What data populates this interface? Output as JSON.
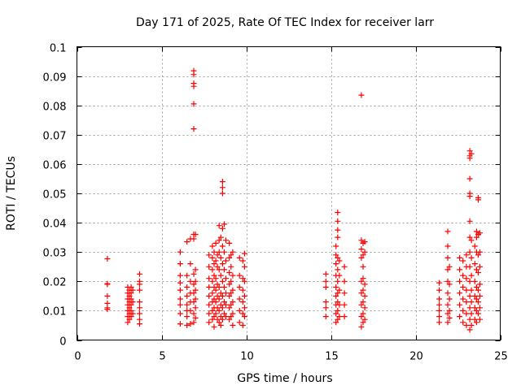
{
  "chart_data": {
    "type": "scatter",
    "title": "Day 171 of 2025, Rate Of TEC Index for receiver larr",
    "xlabel": "GPS time / hours",
    "ylabel": "ROTI / TECUs",
    "xlim": [
      0,
      25
    ],
    "ylim": [
      0,
      0.1
    ],
    "x_ticks": [
      0,
      5,
      10,
      15,
      20,
      25
    ],
    "y_ticks": [
      0,
      0.01,
      0.02,
      0.03,
      0.04,
      0.05,
      0.06,
      0.07,
      0.08,
      0.09,
      0.1
    ],
    "x_tick_labels": [
      "0",
      "5",
      "10",
      "15",
      "20",
      "25"
    ],
    "y_tick_labels": [
      "0",
      "0.01",
      "0.02",
      "0.03",
      "0.04",
      "0.05",
      "0.06",
      "0.07",
      "0.08",
      "0.09",
      "0.1"
    ],
    "grid": true,
    "marker": "plus",
    "color": "#ff0000",
    "points": [
      [
        1.8,
        0.0277
      ],
      [
        1.8,
        0.0192
      ],
      [
        1.8,
        0.019
      ],
      [
        1.8,
        0.015
      ],
      [
        1.8,
        0.0125
      ],
      [
        1.8,
        0.011
      ],
      [
        1.8,
        0.0105
      ],
      [
        3.0,
        0.018
      ],
      [
        3.0,
        0.016
      ],
      [
        3.0,
        0.014
      ],
      [
        3.0,
        0.012
      ],
      [
        3.0,
        0.01
      ],
      [
        3.0,
        0.008
      ],
      [
        3.0,
        0.006
      ],
      [
        3.1,
        0.017
      ],
      [
        3.1,
        0.015
      ],
      [
        3.1,
        0.013
      ],
      [
        3.1,
        0.011
      ],
      [
        3.1,
        0.009
      ],
      [
        3.1,
        0.007
      ],
      [
        3.2,
        0.018
      ],
      [
        3.2,
        0.016
      ],
      [
        3.2,
        0.014
      ],
      [
        3.2,
        0.012
      ],
      [
        3.2,
        0.01
      ],
      [
        3.2,
        0.008
      ],
      [
        3.3,
        0.017
      ],
      [
        3.3,
        0.013
      ],
      [
        3.3,
        0.009
      ],
      [
        3.7,
        0.0225
      ],
      [
        3.7,
        0.02
      ],
      [
        3.7,
        0.019
      ],
      [
        3.7,
        0.017
      ],
      [
        3.7,
        0.013
      ],
      [
        3.7,
        0.011
      ],
      [
        3.7,
        0.009
      ],
      [
        3.7,
        0.007
      ],
      [
        3.7,
        0.0055
      ],
      [
        6.1,
        0.03
      ],
      [
        6.1,
        0.026
      ],
      [
        6.1,
        0.022
      ],
      [
        6.1,
        0.0195
      ],
      [
        6.1,
        0.017
      ],
      [
        6.1,
        0.014
      ],
      [
        6.1,
        0.012
      ],
      [
        6.1,
        0.009
      ],
      [
        6.1,
        0.0055
      ],
      [
        6.5,
        0.0335
      ],
      [
        6.5,
        0.022
      ],
      [
        6.5,
        0.018
      ],
      [
        6.5,
        0.015
      ],
      [
        6.5,
        0.012
      ],
      [
        6.5,
        0.01
      ],
      [
        6.5,
        0.008
      ],
      [
        6.5,
        0.005
      ],
      [
        6.7,
        0.0345
      ],
      [
        6.7,
        0.026
      ],
      [
        6.7,
        0.02
      ],
      [
        6.7,
        0.016
      ],
      [
        6.7,
        0.013
      ],
      [
        6.7,
        0.01
      ],
      [
        6.7,
        0.0055
      ],
      [
        6.9,
        0.0918
      ],
      [
        6.9,
        0.0905
      ],
      [
        6.9,
        0.0875
      ],
      [
        6.9,
        0.0865
      ],
      [
        6.9,
        0.0805
      ],
      [
        6.9,
        0.072
      ],
      [
        6.9,
        0.036
      ],
      [
        6.9,
        0.0345
      ],
      [
        6.9,
        0.0225
      ],
      [
        6.9,
        0.019
      ],
      [
        6.9,
        0.016
      ],
      [
        6.9,
        0.013
      ],
      [
        6.9,
        0.009
      ],
      [
        6.9,
        0.006
      ],
      [
        7.0,
        0.036
      ],
      [
        7.0,
        0.024
      ],
      [
        7.0,
        0.02
      ],
      [
        7.0,
        0.017
      ],
      [
        7.0,
        0.014
      ],
      [
        7.0,
        0.011
      ],
      [
        7.0,
        0.0075
      ],
      [
        7.8,
        0.029
      ],
      [
        7.8,
        0.025
      ],
      [
        7.8,
        0.021
      ],
      [
        7.8,
        0.018
      ],
      [
        7.8,
        0.015
      ],
      [
        7.8,
        0.012
      ],
      [
        7.8,
        0.009
      ],
      [
        7.8,
        0.006
      ],
      [
        8.0,
        0.032
      ],
      [
        8.0,
        0.028
      ],
      [
        8.0,
        0.024
      ],
      [
        8.0,
        0.02
      ],
      [
        8.0,
        0.016
      ],
      [
        8.0,
        0.013
      ],
      [
        8.0,
        0.01
      ],
      [
        8.0,
        0.007
      ],
      [
        8.1,
        0.03
      ],
      [
        8.1,
        0.026
      ],
      [
        8.1,
        0.022
      ],
      [
        8.1,
        0.018
      ],
      [
        8.1,
        0.014
      ],
      [
        8.1,
        0.011
      ],
      [
        8.1,
        0.008
      ],
      [
        8.1,
        0.0045
      ],
      [
        8.2,
        0.033
      ],
      [
        8.2,
        0.027
      ],
      [
        8.2,
        0.021
      ],
      [
        8.2,
        0.017
      ],
      [
        8.2,
        0.013
      ],
      [
        8.2,
        0.009
      ],
      [
        8.3,
        0.029
      ],
      [
        8.3,
        0.025
      ],
      [
        8.3,
        0.019
      ],
      [
        8.3,
        0.015
      ],
      [
        8.3,
        0.011
      ],
      [
        8.3,
        0.007
      ],
      [
        8.4,
        0.039
      ],
      [
        8.4,
        0.034
      ],
      [
        8.4,
        0.03
      ],
      [
        8.4,
        0.024
      ],
      [
        8.4,
        0.018
      ],
      [
        8.4,
        0.014
      ],
      [
        8.4,
        0.01
      ],
      [
        8.4,
        0.006
      ],
      [
        8.5,
        0.035
      ],
      [
        8.5,
        0.028
      ],
      [
        8.5,
        0.022
      ],
      [
        8.5,
        0.016
      ],
      [
        8.5,
        0.012
      ],
      [
        8.5,
        0.008
      ],
      [
        8.5,
        0.005
      ],
      [
        8.6,
        0.054
      ],
      [
        8.6,
        0.052
      ],
      [
        8.6,
        0.05
      ],
      [
        8.6,
        0.038
      ],
      [
        8.6,
        0.032
      ],
      [
        8.6,
        0.026
      ],
      [
        8.6,
        0.02
      ],
      [
        8.6,
        0.015
      ],
      [
        8.6,
        0.011
      ],
      [
        8.6,
        0.007
      ],
      [
        8.7,
        0.0395
      ],
      [
        8.7,
        0.03
      ],
      [
        8.7,
        0.024
      ],
      [
        8.7,
        0.018
      ],
      [
        8.7,
        0.013
      ],
      [
        8.7,
        0.009
      ],
      [
        8.8,
        0.034
      ],
      [
        8.8,
        0.027
      ],
      [
        8.8,
        0.021
      ],
      [
        8.8,
        0.016
      ],
      [
        8.8,
        0.012
      ],
      [
        8.8,
        0.008
      ],
      [
        9.0,
        0.033
      ],
      [
        9.0,
        0.028
      ],
      [
        9.0,
        0.023
      ],
      [
        9.0,
        0.019
      ],
      [
        9.0,
        0.015
      ],
      [
        9.0,
        0.011
      ],
      [
        9.0,
        0.007
      ],
      [
        9.1,
        0.029
      ],
      [
        9.1,
        0.025
      ],
      [
        9.1,
        0.02
      ],
      [
        9.1,
        0.016
      ],
      [
        9.1,
        0.012
      ],
      [
        9.1,
        0.008
      ],
      [
        9.2,
        0.03
      ],
      [
        9.2,
        0.022
      ],
      [
        9.2,
        0.017
      ],
      [
        9.2,
        0.013
      ],
      [
        9.2,
        0.009
      ],
      [
        9.2,
        0.005
      ],
      [
        9.6,
        0.028
      ],
      [
        9.6,
        0.022
      ],
      [
        9.6,
        0.018
      ],
      [
        9.6,
        0.014
      ],
      [
        9.6,
        0.01
      ],
      [
        9.6,
        0.006
      ],
      [
        9.8,
        0.027
      ],
      [
        9.8,
        0.021
      ],
      [
        9.8,
        0.017
      ],
      [
        9.8,
        0.013
      ],
      [
        9.8,
        0.009
      ],
      [
        9.8,
        0.005
      ],
      [
        9.9,
        0.0295
      ],
      [
        9.9,
        0.025
      ],
      [
        9.9,
        0.02
      ],
      [
        9.9,
        0.015
      ],
      [
        9.9,
        0.011
      ],
      [
        9.9,
        0.008
      ],
      [
        14.7,
        0.0225
      ],
      [
        14.7,
        0.02
      ],
      [
        14.7,
        0.018
      ],
      [
        14.7,
        0.013
      ],
      [
        14.7,
        0.011
      ],
      [
        14.7,
        0.008
      ],
      [
        15.3,
        0.032
      ],
      [
        15.3,
        0.029
      ],
      [
        15.3,
        0.026
      ],
      [
        15.3,
        0.022
      ],
      [
        15.3,
        0.018
      ],
      [
        15.3,
        0.015
      ],
      [
        15.3,
        0.012
      ],
      [
        15.3,
        0.009
      ],
      [
        15.3,
        0.006
      ],
      [
        15.4,
        0.0435
      ],
      [
        15.4,
        0.0405
      ],
      [
        15.4,
        0.0375
      ],
      [
        15.4,
        0.035
      ],
      [
        15.4,
        0.028
      ],
      [
        15.4,
        0.024
      ],
      [
        15.4,
        0.02
      ],
      [
        15.4,
        0.016
      ],
      [
        15.4,
        0.013
      ],
      [
        15.4,
        0.01
      ],
      [
        15.4,
        0.007
      ],
      [
        15.5,
        0.027
      ],
      [
        15.5,
        0.022
      ],
      [
        15.5,
        0.017
      ],
      [
        15.5,
        0.012
      ],
      [
        15.5,
        0.008
      ],
      [
        15.8,
        0.025
      ],
      [
        15.8,
        0.02
      ],
      [
        15.8,
        0.016
      ],
      [
        15.8,
        0.012
      ],
      [
        15.8,
        0.008
      ],
      [
        16.8,
        0.0835
      ],
      [
        16.8,
        0.034
      ],
      [
        16.8,
        0.031
      ],
      [
        16.8,
        0.028
      ],
      [
        16.8,
        0.02
      ],
      [
        16.8,
        0.016
      ],
      [
        16.8,
        0.012
      ],
      [
        16.8,
        0.008
      ],
      [
        16.8,
        0.0045
      ],
      [
        16.9,
        0.033
      ],
      [
        16.9,
        0.029
      ],
      [
        16.9,
        0.025
      ],
      [
        16.9,
        0.021
      ],
      [
        16.9,
        0.017
      ],
      [
        16.9,
        0.013
      ],
      [
        16.9,
        0.009
      ],
      [
        16.9,
        0.006
      ],
      [
        17.0,
        0.0335
      ],
      [
        17.0,
        0.03
      ],
      [
        17.0,
        0.019
      ],
      [
        17.0,
        0.015
      ],
      [
        17.0,
        0.011
      ],
      [
        17.0,
        0.007
      ],
      [
        21.4,
        0.0195
      ],
      [
        21.4,
        0.017
      ],
      [
        21.4,
        0.014
      ],
      [
        21.4,
        0.012
      ],
      [
        21.4,
        0.01
      ],
      [
        21.4,
        0.008
      ],
      [
        21.4,
        0.006
      ],
      [
        21.9,
        0.037
      ],
      [
        21.9,
        0.032
      ],
      [
        21.9,
        0.028
      ],
      [
        21.9,
        0.024
      ],
      [
        21.9,
        0.02
      ],
      [
        21.9,
        0.016
      ],
      [
        21.9,
        0.012
      ],
      [
        21.9,
        0.009
      ],
      [
        21.9,
        0.006
      ],
      [
        22.0,
        0.025
      ],
      [
        22.0,
        0.019
      ],
      [
        22.0,
        0.014
      ],
      [
        22.0,
        0.01
      ],
      [
        22.0,
        0.0075
      ],
      [
        22.6,
        0.028
      ],
      [
        22.6,
        0.024
      ],
      [
        22.6,
        0.02
      ],
      [
        22.6,
        0.016
      ],
      [
        22.6,
        0.012
      ],
      [
        22.6,
        0.008
      ],
      [
        22.8,
        0.027
      ],
      [
        22.8,
        0.022
      ],
      [
        22.8,
        0.018
      ],
      [
        22.8,
        0.014
      ],
      [
        22.8,
        0.01
      ],
      [
        22.8,
        0.006
      ],
      [
        23.0,
        0.029
      ],
      [
        23.0,
        0.025
      ],
      [
        23.0,
        0.021
      ],
      [
        23.0,
        0.017
      ],
      [
        23.0,
        0.013
      ],
      [
        23.0,
        0.009
      ],
      [
        23.0,
        0.005
      ],
      [
        23.2,
        0.0645
      ],
      [
        23.2,
        0.0628
      ],
      [
        23.2,
        0.062
      ],
      [
        23.2,
        0.055
      ],
      [
        23.2,
        0.05
      ],
      [
        23.2,
        0.049
      ],
      [
        23.2,
        0.0405
      ],
      [
        23.2,
        0.035
      ],
      [
        23.2,
        0.03
      ],
      [
        23.2,
        0.025
      ],
      [
        23.2,
        0.02
      ],
      [
        23.2,
        0.015
      ],
      [
        23.2,
        0.011
      ],
      [
        23.2,
        0.007
      ],
      [
        23.2,
        0.0035
      ],
      [
        23.3,
        0.0635
      ],
      [
        23.3,
        0.034
      ],
      [
        23.3,
        0.028
      ],
      [
        23.3,
        0.022
      ],
      [
        23.3,
        0.017
      ],
      [
        23.3,
        0.013
      ],
      [
        23.3,
        0.009
      ],
      [
        23.3,
        0.005
      ],
      [
        23.5,
        0.032
      ],
      [
        23.5,
        0.026
      ],
      [
        23.5,
        0.02
      ],
      [
        23.5,
        0.015
      ],
      [
        23.5,
        0.011
      ],
      [
        23.5,
        0.007
      ],
      [
        23.6,
        0.037
      ],
      [
        23.6,
        0.035
      ],
      [
        23.6,
        0.03
      ],
      [
        23.6,
        0.024
      ],
      [
        23.6,
        0.018
      ],
      [
        23.6,
        0.014
      ],
      [
        23.6,
        0.01
      ],
      [
        23.6,
        0.006
      ],
      [
        23.7,
        0.0485
      ],
      [
        23.7,
        0.0478
      ],
      [
        23.7,
        0.036
      ],
      [
        23.7,
        0.029
      ],
      [
        23.7,
        0.023
      ],
      [
        23.7,
        0.017
      ],
      [
        23.7,
        0.013
      ],
      [
        23.7,
        0.009
      ],
      [
        23.8,
        0.0365
      ],
      [
        23.8,
        0.03
      ],
      [
        23.8,
        0.025
      ],
      [
        23.8,
        0.019
      ],
      [
        23.8,
        0.015
      ],
      [
        23.8,
        0.011
      ],
      [
        23.8,
        0.007
      ]
    ]
  }
}
